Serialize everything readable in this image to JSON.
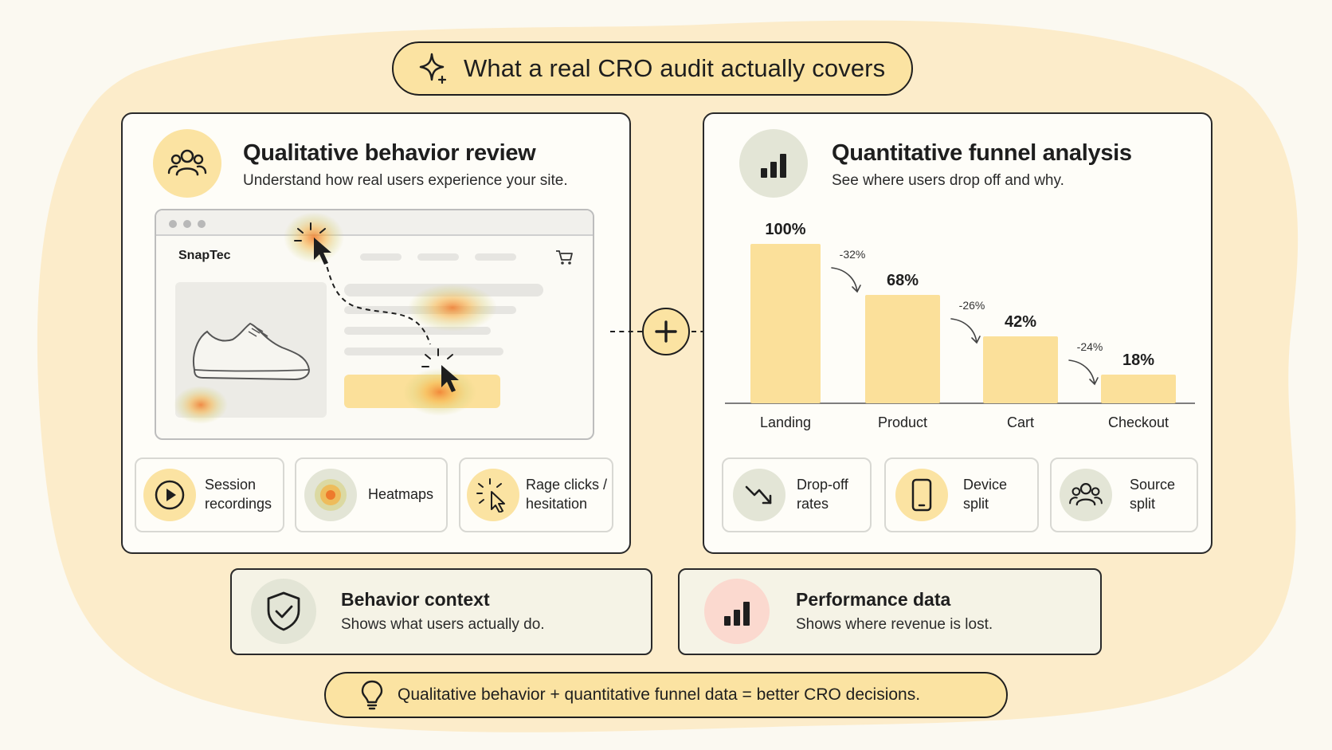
{
  "title": "What a real CRO audit actually covers",
  "left_panel": {
    "heading": "Qualitative behavior review",
    "subheading": "Understand how real users experience your site.",
    "browser_brand": "SnapTec",
    "features": [
      {
        "line1": "Session",
        "line2": "recordings",
        "icon": "play-icon"
      },
      {
        "line1": "Heatmaps",
        "line2": "",
        "icon": "heatmap-icon"
      },
      {
        "line1": "Rage clicks /",
        "line2": "hesitation",
        "icon": "click-icon"
      }
    ]
  },
  "right_panel": {
    "heading": "Quantitative funnel analysis",
    "subheading": "See where users drop off and why.",
    "features": [
      {
        "line1": "Drop-off",
        "line2": "rates",
        "icon": "trend-down-icon"
      },
      {
        "line1": "Device",
        "line2": "split",
        "icon": "phone-icon"
      },
      {
        "line1": "Source",
        "line2": "split",
        "icon": "users-icon"
      }
    ]
  },
  "chart_data": {
    "type": "bar",
    "categories": [
      "Landing",
      "Product",
      "Cart",
      "Checkout"
    ],
    "values": [
      100,
      68,
      42,
      18
    ],
    "value_labels": [
      "100%",
      "68%",
      "42%",
      "18%"
    ],
    "drops": [
      "-32%",
      "-26%",
      "-24%"
    ],
    "ylim": [
      0,
      100
    ],
    "color": "#fbe09a"
  },
  "bottom": {
    "behavior": {
      "title": "Behavior context",
      "text": "Shows what users actually do."
    },
    "performance": {
      "title": "Performance data",
      "text": "Shows where revenue is lost."
    }
  },
  "footer": "Qualitative behavior + quantitative funnel data = better CRO decisions.",
  "colors": {
    "accent_yellow": "#fbe3a2",
    "background_blob": "#fcecca",
    "sage": "#e3e5d6",
    "pink": "#fbd9cf",
    "heat_orange": "#f5a23a"
  }
}
